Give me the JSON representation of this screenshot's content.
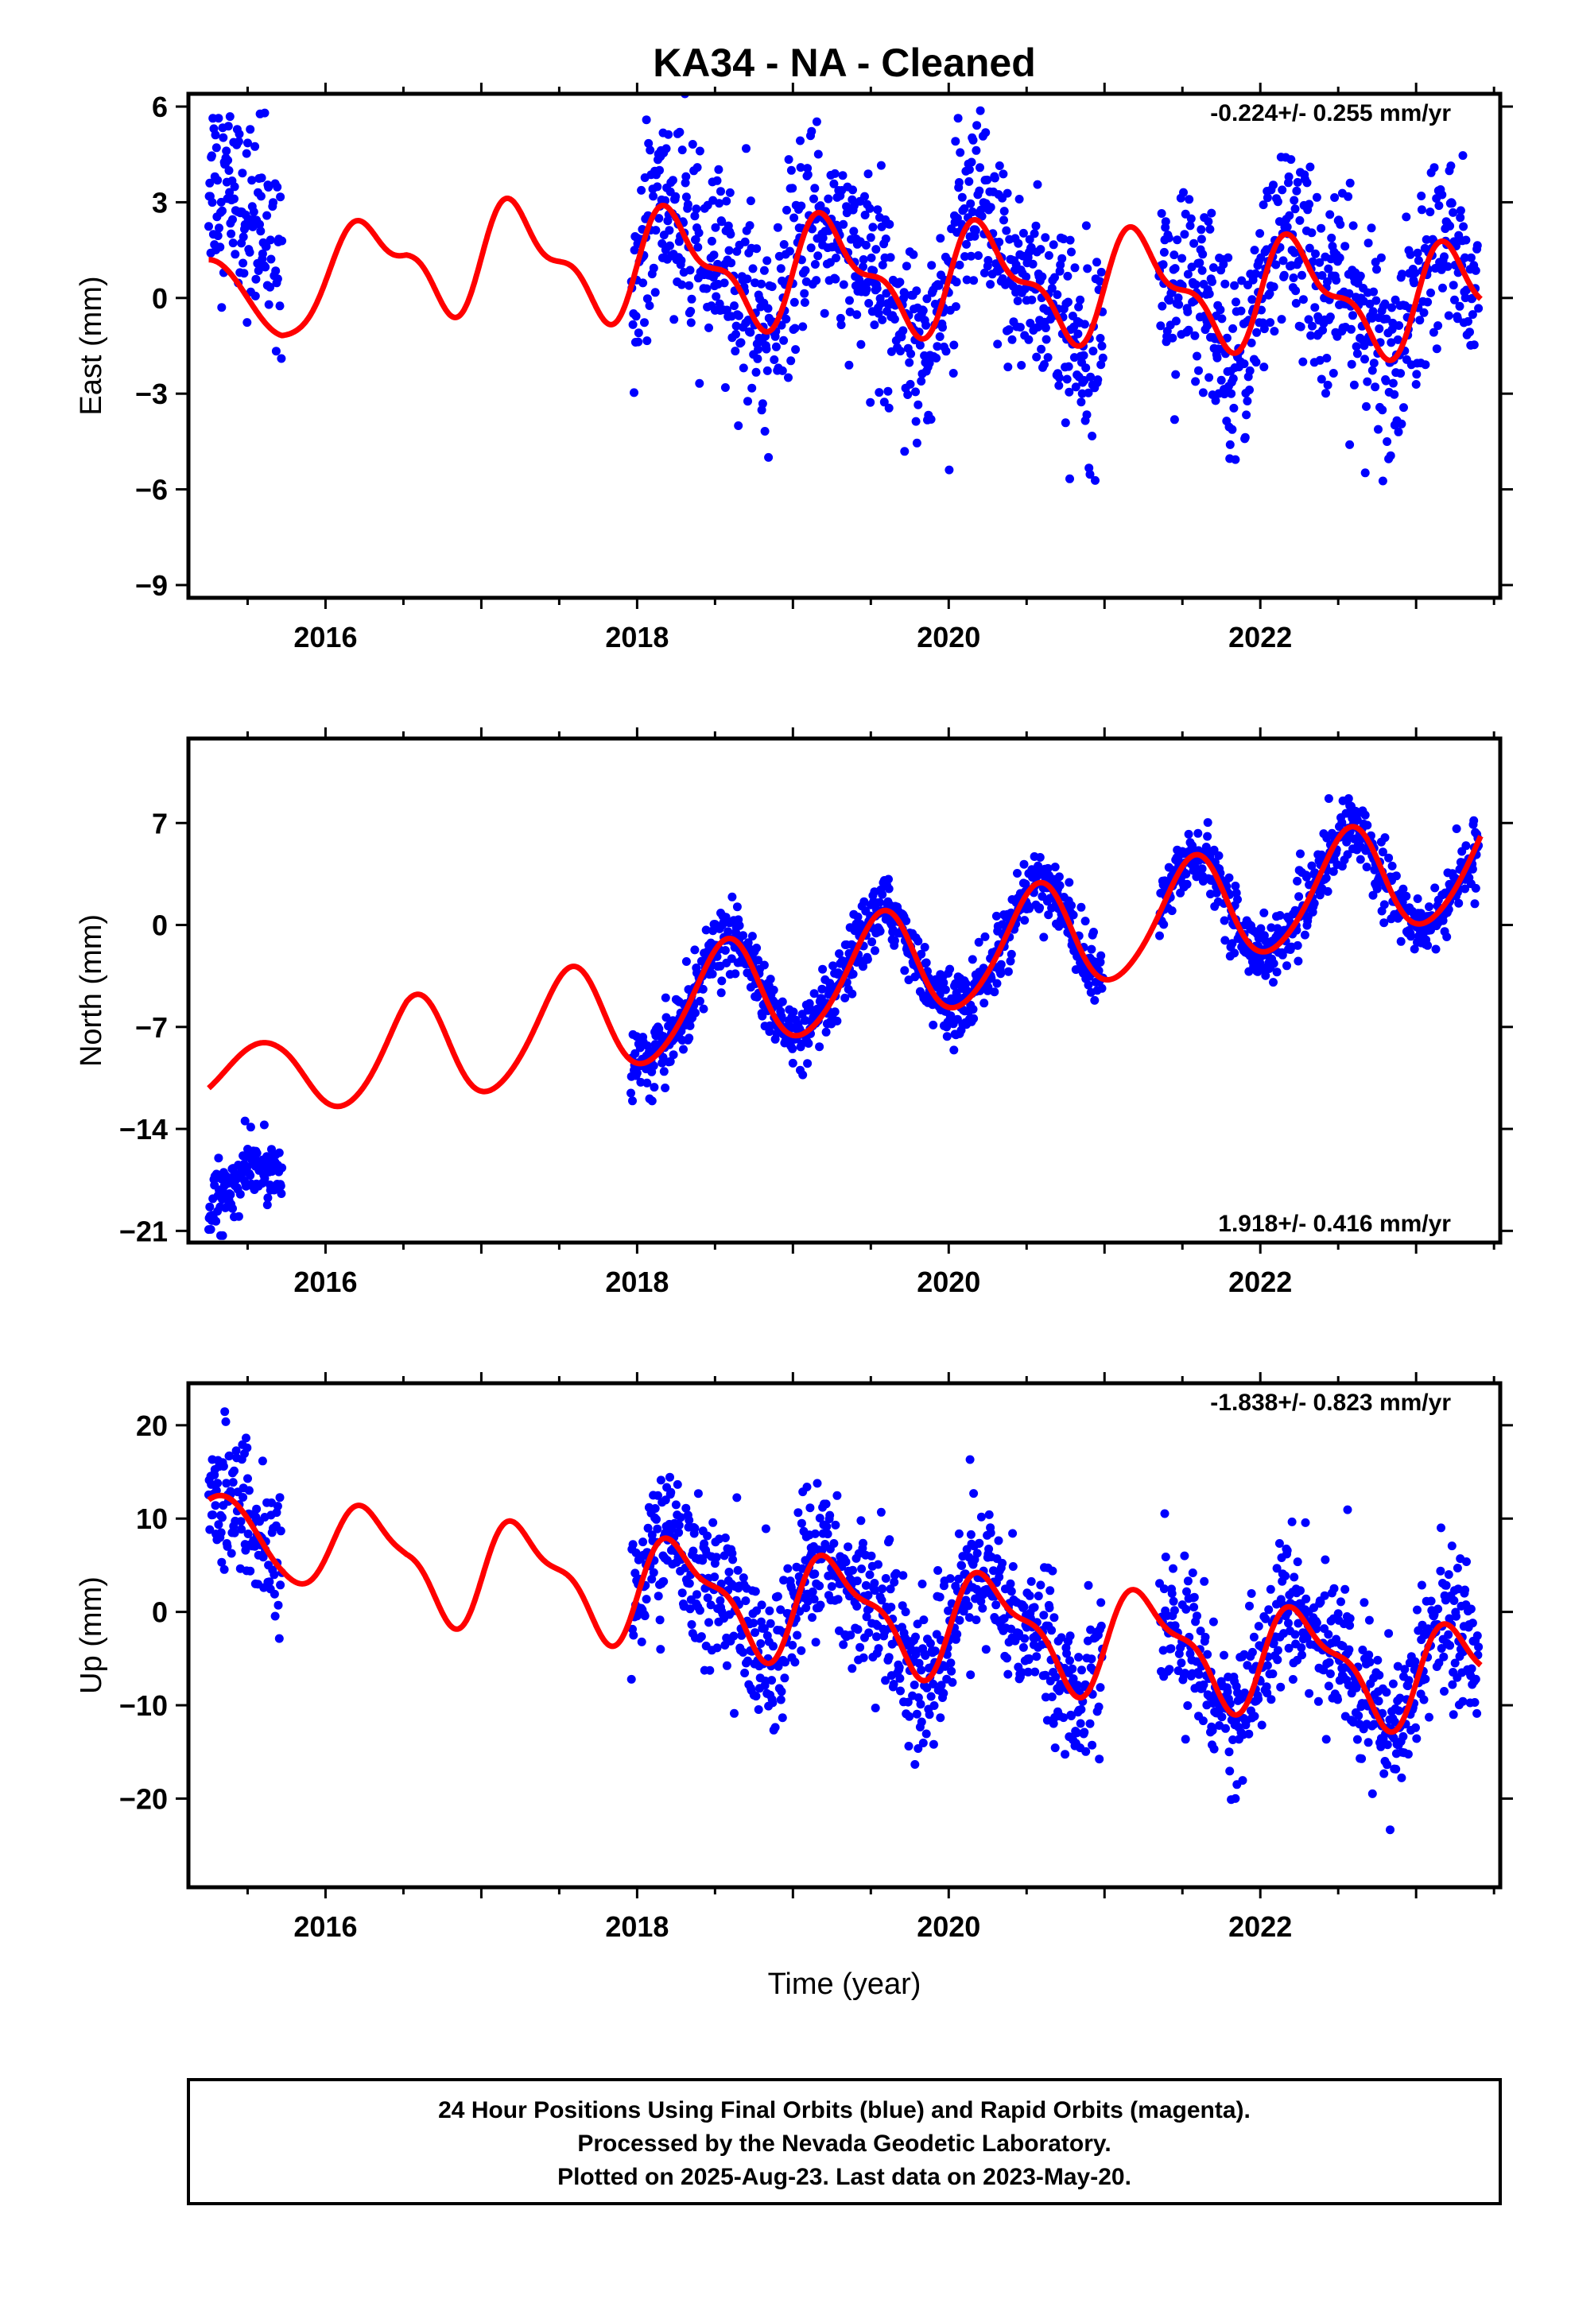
{
  "title": "KA34  - NA - Cleaned",
  "xlabel": "Time (year)",
  "footer": {
    "lines": [
      "24 Hour Positions Using Final Orbits (blue) and Rapid Orbits (magenta).",
      "Processed by the Nevada Geodetic Laboratory.",
      "Plotted on 2025-Aug-23. Last data on 2023-May-20."
    ]
  },
  "colors": {
    "points": "#0000ff",
    "model": "#ff0000",
    "axes": "#000000"
  },
  "chart_data": [
    {
      "type": "scatter",
      "ylabel": "East (mm)",
      "rate_text": "-0.224+/- 0.255 mm/yr",
      "xlim": [
        2015.12,
        2023.54
      ],
      "ylim": [
        -9.4,
        6.4
      ],
      "xticks": [
        2016,
        2018,
        2020,
        2022
      ],
      "yticks": [
        -9,
        -6,
        -3,
        0,
        3,
        6
      ],
      "ytick_labels": [
        "-9",
        "-6",
        "-3",
        "0",
        "3",
        "6"
      ],
      "data_segments": [
        [
          2015.25,
          2015.72
        ],
        [
          2017.96,
          2020.99
        ],
        [
          2021.35,
          2023.4
        ]
      ],
      "model": {
        "offset": 0.74,
        "trend": -0.224,
        "t0": 2019.3,
        "annual": [
          0.0,
          1.5
        ],
        "semiannual": [
          0.0,
          0.7
        ],
        "early": {
          "range": [
            2015.25,
            2015.72
          ],
          "offset": 0.0,
          "trend": 0.0,
          "annual": [
            0.0,
            1.2
          ]
        }
      },
      "scatter": {
        "noise": 1.5,
        "early_shift": 2.6
      },
      "series": [
        {
          "name": "",
          "values": []
        }
      ]
    },
    {
      "type": "scatter",
      "ylabel": "North (mm)",
      "rate_text": "1.918+/- 0.416 mm/yr",
      "xlim": [
        2015.12,
        2023.54
      ],
      "ylim": [
        -21.8,
        12.8
      ],
      "xticks": [
        2016,
        2018,
        2020,
        2022
      ],
      "yticks": [
        -21,
        -14,
        -7,
        0,
        7
      ],
      "ytick_labels": [
        "-21",
        "-14",
        "-7",
        "0",
        "7"
      ],
      "data_segments": [
        [
          2015.25,
          2015.72
        ],
        [
          2017.96,
          2020.99
        ],
        [
          2021.35,
          2023.4
        ]
      ],
      "model": {
        "offset": -3.6,
        "trend": 1.918,
        "t0": 2019.3,
        "annual": [
          -3.4,
          -1.5
        ],
        "semiannual": [
          0.0,
          0.4
        ],
        "early": {
          "range": [
            2015.25,
            2015.72
          ],
          "offset": -10.0,
          "trend": 0.0,
          "annual": [
            -1.5,
            -1.2
          ]
        }
      },
      "scatter": {
        "noise": 1.1,
        "early_shift": -8.5
      },
      "series": [
        {
          "name": "",
          "values": []
        }
      ]
    },
    {
      "type": "scatter",
      "ylabel": "Up (mm)",
      "rate_text": "-1.838+/- 0.823 mm/yr",
      "xlim": [
        2015.12,
        2023.54
      ],
      "ylim": [
        -29.5,
        24.5
      ],
      "xticks": [
        2016,
        2018,
        2020,
        2022
      ],
      "yticks": [
        -20,
        -10,
        0,
        10,
        20
      ],
      "ytick_labels": [
        "-20",
        "-10",
        "0",
        "10",
        "20"
      ],
      "data_segments": [
        [
          2015.25,
          2015.72
        ],
        [
          2017.96,
          2020.99
        ],
        [
          2021.35,
          2023.4
        ]
      ],
      "model": {
        "offset": 0.2,
        "trend": -1.838,
        "t0": 2019.3,
        "annual": [
          -1.0,
          5.0
        ],
        "semiannual": [
          0.0,
          2.0
        ],
        "early": {
          "range": [
            2015.25,
            2015.72
          ],
          "offset": 8.0,
          "trend": 0.0,
          "annual": [
            -2.0,
            4.0
          ]
        }
      },
      "scatter": {
        "noise": 3.8,
        "early_shift": 0.0
      },
      "series": [
        {
          "name": "",
          "values": []
        }
      ]
    }
  ]
}
